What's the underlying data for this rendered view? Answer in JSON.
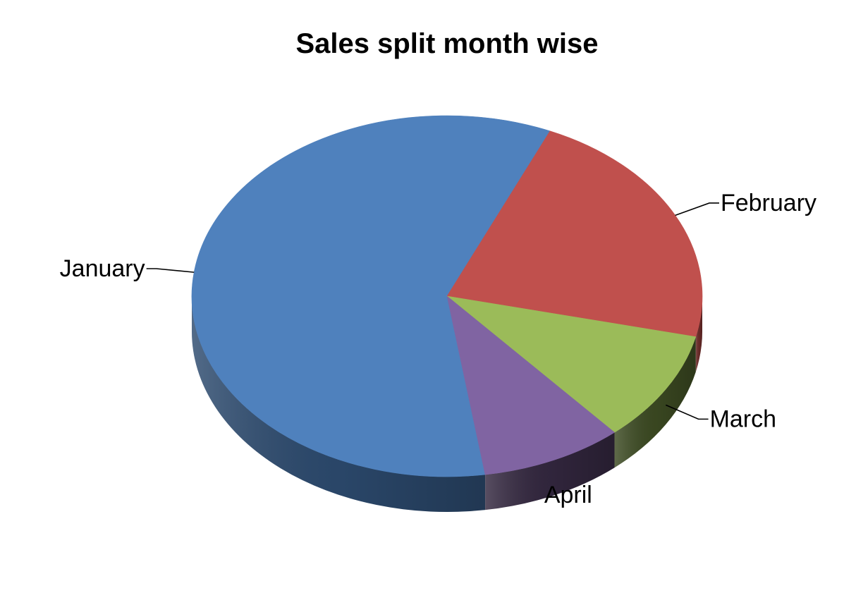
{
  "chart_data": {
    "type": "pie",
    "title": "Sales split month wise",
    "three_d": true,
    "legend": "none",
    "slices": [
      {
        "label": "January",
        "value": 59,
        "color": "#4F81BD",
        "side_color": "#2C4A6E"
      },
      {
        "label": "February",
        "value": 22,
        "color": "#C0504D",
        "side_color": "#6E2C2A"
      },
      {
        "label": "March",
        "value": 10,
        "color": "#9BBB59",
        "side_color": "#3C4A22"
      },
      {
        "label": "April",
        "value": 9,
        "color": "#8064A2",
        "side_color": "#33273F"
      }
    ]
  }
}
